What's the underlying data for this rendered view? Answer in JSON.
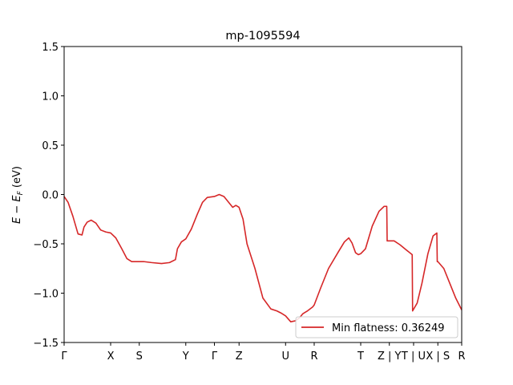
{
  "chart_data": {
    "type": "line",
    "title": "mp-1095594",
    "ylabel_main": "E − E",
    "ylabel_sub": "F",
    "ylabel_unit": " (eV)",
    "xlabel": "",
    "ylim": [
      -1.5,
      1.5
    ],
    "xlim": [
      0,
      1
    ],
    "yticks": [
      {
        "value": -1.5,
        "label": "−1.5"
      },
      {
        "value": -1.0,
        "label": "−1.0"
      },
      {
        "value": -0.5,
        "label": "−0.5"
      },
      {
        "value": 0.0,
        "label": "0.0"
      },
      {
        "value": 0.5,
        "label": "0.5"
      },
      {
        "value": 1.0,
        "label": "1.0"
      },
      {
        "value": 1.5,
        "label": "1.5"
      }
    ],
    "xticks": [
      {
        "value": 0.0,
        "label": "Γ"
      },
      {
        "value": 0.117,
        "label": "X"
      },
      {
        "value": 0.189,
        "label": "S"
      },
      {
        "value": 0.306,
        "label": "Y"
      },
      {
        "value": 0.378,
        "label": "Γ"
      },
      {
        "value": 0.44,
        "label": "Z"
      },
      {
        "value": 0.557,
        "label": "U"
      },
      {
        "value": 0.629,
        "label": "R"
      },
      {
        "value": 0.746,
        "label": "T"
      },
      {
        "value": 0.818,
        "label": "Z | Y"
      },
      {
        "value": 0.879,
        "label": "T | U"
      },
      {
        "value": 0.94,
        "label": "X | S"
      },
      {
        "value": 1.0,
        "label": "R"
      }
    ],
    "series": [
      {
        "name": "Min flatness: 0.36249",
        "color": "#d62728",
        "x": [
          0.0,
          0.01,
          0.022,
          0.035,
          0.045,
          0.05,
          0.058,
          0.068,
          0.08,
          0.092,
          0.105,
          0.117,
          0.13,
          0.145,
          0.158,
          0.17,
          0.182,
          0.189,
          0.2,
          0.22,
          0.245,
          0.265,
          0.28,
          0.285,
          0.295,
          0.306,
          0.32,
          0.335,
          0.348,
          0.36,
          0.378,
          0.39,
          0.402,
          0.412,
          0.424,
          0.432,
          0.44,
          0.45,
          0.46,
          0.48,
          0.5,
          0.52,
          0.535,
          0.545,
          0.557,
          0.57,
          0.582,
          0.592,
          0.6,
          0.612,
          0.625,
          0.629,
          0.645,
          0.665,
          0.69,
          0.705,
          0.716,
          0.724,
          0.733,
          0.74,
          0.746,
          0.758,
          0.775,
          0.792,
          0.805,
          0.8115,
          0.8125,
          0.818,
          0.83,
          0.845,
          0.86,
          0.8755,
          0.8765,
          0.888,
          0.9,
          0.915,
          0.928,
          0.9375,
          0.9385,
          0.94,
          0.955,
          0.97,
          0.985,
          1.0
        ],
        "y": [
          -0.02,
          -0.08,
          -0.22,
          -0.4,
          -0.41,
          -0.33,
          -0.28,
          -0.26,
          -0.29,
          -0.36,
          -0.38,
          -0.39,
          -0.44,
          -0.55,
          -0.65,
          -0.68,
          -0.68,
          -0.68,
          -0.68,
          -0.69,
          -0.7,
          -0.69,
          -0.66,
          -0.55,
          -0.48,
          -0.45,
          -0.35,
          -0.2,
          -0.08,
          -0.03,
          -0.02,
          0.0,
          -0.02,
          -0.07,
          -0.13,
          -0.11,
          -0.13,
          -0.25,
          -0.5,
          -0.75,
          -1.05,
          -1.16,
          -1.18,
          -1.2,
          -1.23,
          -1.29,
          -1.28,
          -1.25,
          -1.21,
          -1.18,
          -1.14,
          -1.12,
          -0.95,
          -0.75,
          -0.58,
          -0.48,
          -0.44,
          -0.49,
          -0.59,
          -0.61,
          -0.6,
          -0.55,
          -0.32,
          -0.17,
          -0.12,
          -0.12,
          -0.47,
          -0.47,
          -0.47,
          -0.51,
          -0.56,
          -0.61,
          -1.18,
          -1.1,
          -0.9,
          -0.6,
          -0.42,
          -0.39,
          -0.68,
          -0.68,
          -0.75,
          -0.9,
          -1.05,
          -1.17
        ]
      }
    ],
    "legend": {
      "position": "lower-right"
    }
  }
}
